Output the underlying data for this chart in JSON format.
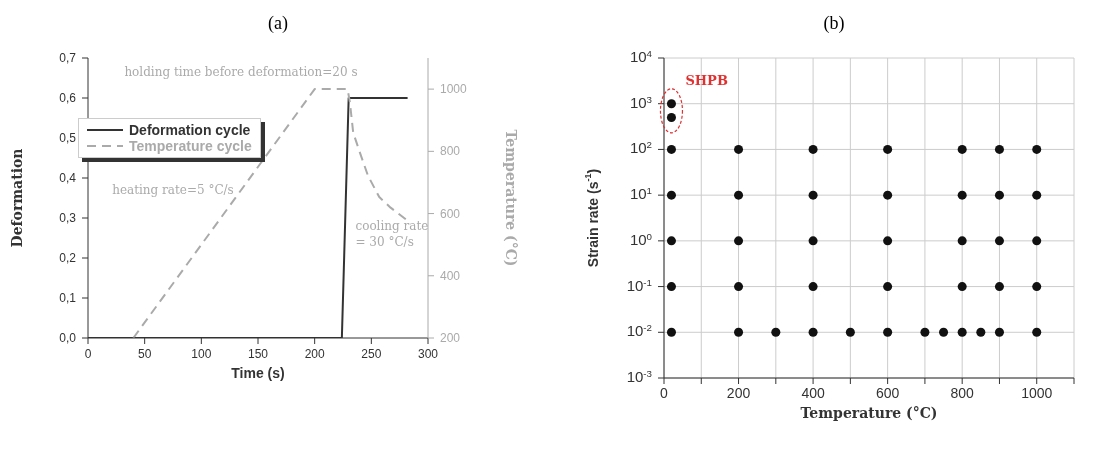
{
  "chart_data": [
    {
      "type": "line",
      "title": "(a)",
      "xlabel": "Time (s)",
      "ylabel": "Deformation",
      "y2label": "Temperature (°C)",
      "xlim": [
        0,
        300
      ],
      "xticks": [
        0,
        50,
        100,
        150,
        200,
        250,
        300
      ],
      "ylim": [
        0,
        0.7
      ],
      "yticks": [
        {
          "value": 0,
          "label": "0,0"
        },
        {
          "value": 0.1,
          "label": "0,1"
        },
        {
          "value": 0.2,
          "label": "0,2"
        },
        {
          "value": 0.3,
          "label": "0,3"
        },
        {
          "value": 0.4,
          "label": "0,4"
        },
        {
          "value": 0.5,
          "label": "0,5"
        },
        {
          "value": 0.6,
          "label": "0,6"
        },
        {
          "value": 0.7,
          "label": "0,7"
        }
      ],
      "y2lim": [
        200,
        1100
      ],
      "y2ticks": [
        200,
        400,
        600,
        800,
        1000
      ],
      "series": [
        {
          "name": "Deformation cycle",
          "color": "#333333",
          "line_style": "solid",
          "x": [
            0,
            224,
            230,
            282
          ],
          "values": [
            0,
            0,
            0.6,
            0.6
          ]
        },
        {
          "name": "Temperature cycle",
          "color": "#aaaaaa",
          "line_style": "dashed",
          "axis": "y2",
          "x": [
            40,
            200,
            229,
            231,
            234,
            240,
            247,
            257,
            267,
            281
          ],
          "values": [
            200,
            1000,
            1000,
            960,
            860,
            795,
            722,
            653,
            619,
            580
          ]
        }
      ],
      "annotations": [
        "holding time before deformation=20 s",
        "heating rate=5 °C/s",
        "cooling rate\n= 30 °C/s"
      ],
      "legend": "top left",
      "marker": "none"
    },
    {
      "type": "scatter",
      "title": "(b)",
      "xlabel": "Temperature (°C)",
      "ylabel": "Strain rate (s$^{-1}$)",
      "xlim": [
        0,
        1100
      ],
      "xticks": [
        0,
        {
          "value": 100,
          "label": null
        },
        200,
        {
          "value": 300,
          "label": null
        },
        400,
        {
          "value": 500,
          "label": null
        },
        600,
        {
          "value": 700,
          "label": null
        },
        800,
        {
          "value": 900,
          "label": null
        },
        1000,
        {
          "value": 1100,
          "label": null
        }
      ],
      "ylim": [
        0.001,
        10000
      ],
      "yticks": [
        {
          "value": 0.001,
          "label": "10$^{-3}$"
        },
        {
          "value": 0.01,
          "label": "10$^{-2}$"
        },
        {
          "value": 0.1,
          "label": "10$^{-1}$"
        },
        {
          "value": 1,
          "label": "10$^{0}$"
        },
        {
          "value": 10,
          "label": "10$^{1}$"
        },
        {
          "value": 100,
          "label": "10$^{2}$"
        },
        {
          "value": 1000,
          "label": "10$^{3}$"
        },
        {
          "value": 10000,
          "label": "10$^{4}$"
        }
      ],
      "log": "y",
      "grid": true,
      "marker": "circle",
      "series": [
        {
          "color": "#111111",
          "x": [
            20,
            20,
            20,
            200,
            400,
            600,
            800,
            900,
            1000,
            20,
            200,
            400,
            600,
            800,
            900,
            1000,
            20,
            200,
            400,
            600,
            800,
            900,
            1000,
            20,
            200,
            400,
            600,
            800,
            900,
            1000,
            20,
            200,
            300,
            400,
            500,
            600,
            700,
            750,
            800,
            850,
            900,
            1000
          ],
          "values": [
            1000,
            500,
            100,
            100,
            100,
            100,
            100,
            100,
            100,
            10,
            10,
            10,
            10,
            10,
            10,
            10,
            1,
            1,
            1,
            1,
            1,
            1,
            1,
            0.1,
            0.1,
            0.1,
            0.1,
            0.1,
            0.1,
            0.1,
            0.01,
            0.01,
            0.01,
            0.01,
            0.01,
            0.01,
            0.01,
            0.01,
            0.01,
            0.01,
            0.01,
            0.01
          ]
        }
      ],
      "annotations": [
        {
          "text": "SHPB",
          "x": 20,
          "y": 700
        }
      ]
    }
  ]
}
